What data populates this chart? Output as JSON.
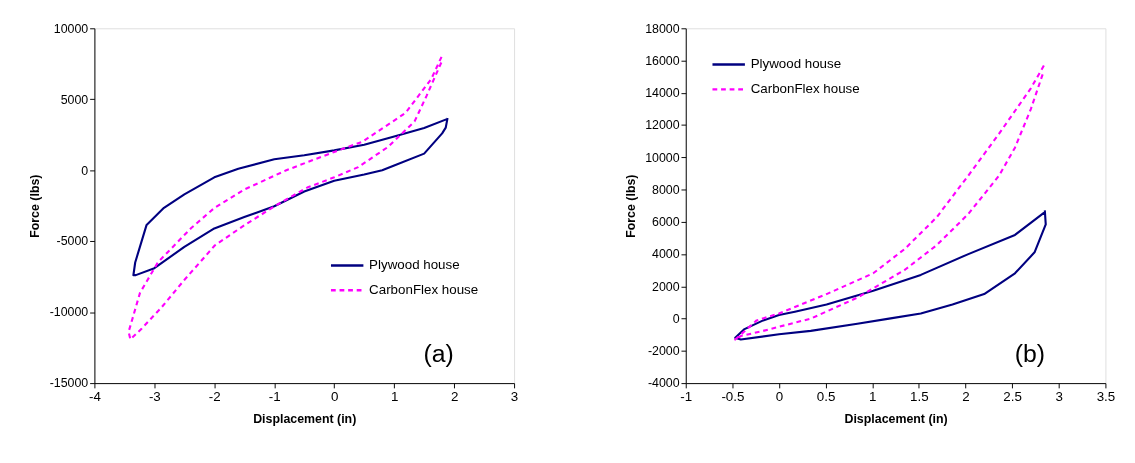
{
  "chart_data": [
    {
      "type": "line",
      "xlabel": "Displacement (in)",
      "ylabel": "Force (lbs)",
      "xlim": [
        -4,
        3
      ],
      "xticks": [
        -4,
        -3,
        -2,
        -1,
        0,
        1,
        2,
        3
      ],
      "ylim": [
        -15000,
        10000
      ],
      "yticks": [
        -15000,
        -10000,
        -5000,
        0,
        5000,
        10000
      ],
      "grid": false,
      "legend": "bottom right",
      "marker": "none",
      "annotations": [
        "(a)"
      ],
      "series": [
        {
          "name": "Plywood house",
          "color": "#000080",
          "line_style": "solid",
          "x": [
            1.89,
            1.86,
            1.8,
            1.5,
            1.0,
            0.8,
            0.5,
            0.0,
            -0.5,
            -1.0,
            -1.5,
            -2.0,
            -2.5,
            -3.0,
            -3.31,
            -3.35,
            -3.32,
            -3.13,
            -2.84,
            -2.5,
            -2.0,
            -1.6,
            -1.0,
            -0.5,
            0.0,
            0.5,
            1.0,
            1.5,
            1.89
          ],
          "values": [
            3680,
            3000,
            2600,
            1170,
            330,
            0,
            -300,
            -740,
            -1500,
            -2540,
            -3300,
            -4100,
            -5400,
            -6900,
            -7390,
            -7400,
            -6500,
            -3850,
            -2650,
            -1700,
            -500,
            100,
            770,
            1050,
            1400,
            1800,
            2370,
            2970,
            3620
          ]
        },
        {
          "name": "CarbonFlex house",
          "color": "#ff00ff",
          "line_style": "dashed",
          "x": [
            1.79,
            1.62,
            1.19,
            0.47,
            0.0,
            -0.8,
            -1.49,
            -2.0,
            -2.39,
            -2.94,
            -3.24,
            -3.43,
            -3.4,
            -3.21,
            -2.89,
            -2.49,
            -1.99,
            -1.49,
            -0.95,
            -0.45,
            0.0,
            0.4,
            0.9,
            1.34,
            1.54,
            1.79
          ],
          "values": [
            7990,
            6440,
            4040,
            2010,
            1290,
            0,
            -1340,
            -2660,
            -4090,
            -6480,
            -8640,
            -11390,
            -11920,
            -11150,
            -9710,
            -7680,
            -5290,
            -3850,
            -2420,
            -1220,
            -500,
            220,
            1650,
            3440,
            5240,
            7630
          ]
        }
      ]
    },
    {
      "type": "line",
      "xlabel": "Displacement (in)",
      "ylabel": "Force (lbs)",
      "xlim": [
        -1,
        3.5
      ],
      "xticks": [
        -1,
        -0.5,
        0,
        0.5,
        1,
        1.5,
        2,
        2.5,
        3,
        3.5
      ],
      "ylim": [
        -4000,
        18000
      ],
      "yticks": [
        -4000,
        -2000,
        0,
        2000,
        4000,
        6000,
        8000,
        10000,
        12000,
        14000,
        16000,
        18000
      ],
      "grid": false,
      "legend": "top left",
      "marker": "none",
      "annotations": [
        "(b)"
      ],
      "series": [
        {
          "name": "Plywood house",
          "color": "#000080",
          "line_style": "solid",
          "x": [
            2.85,
            2.86,
            2.74,
            2.53,
            2.2,
            1.86,
            1.52,
            1.18,
            0.84,
            0.34,
            0.0,
            -0.41,
            -0.47,
            -0.37,
            -0.17,
            0.0,
            0.17,
            0.51,
            1.01,
            1.52,
            2.03,
            2.53,
            2.85
          ],
          "values": [
            6710,
            5840,
            4110,
            2810,
            1520,
            870,
            320,
            0,
            -320,
            -760,
            -970,
            -1300,
            -1190,
            -650,
            -110,
            220,
            430,
            870,
            1730,
            2710,
            4000,
            5190,
            6600
          ]
        },
        {
          "name": "CarbonFlex house",
          "color": "#ff00ff",
          "line_style": "dashed",
          "x": [
            2.84,
            2.7,
            2.36,
            2.03,
            1.69,
            1.35,
            1.01,
            0.51,
            0.0,
            -0.24,
            -0.47,
            -0.41,
            -0.17,
            0.34,
            0.84,
            1.35,
            1.69,
            2.03,
            2.36,
            2.53,
            2.7,
            2.84
          ],
          "values": [
            15690,
            14280,
            11470,
            8870,
            6280,
            4330,
            2810,
            1520,
            320,
            -110,
            -1300,
            -1080,
            -760,
            0,
            1300,
            3030,
            4550,
            6490,
            8870,
            10600,
            12990,
            15370
          ]
        }
      ]
    }
  ]
}
